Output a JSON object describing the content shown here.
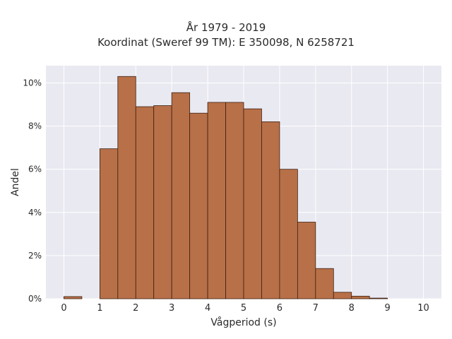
{
  "chart_data": {
    "type": "bar",
    "title_lines": [
      "År 1979 - 2019",
      "Koordinat (Sweref 99 TM): E 350098, N 6258721"
    ],
    "xlabel": "Vågperiod (s)",
    "ylabel": "Andel",
    "xlim": [
      -0.5,
      10.5
    ],
    "ylim": [
      0,
      10.8
    ],
    "x_ticks": [
      0,
      1,
      2,
      3,
      4,
      5,
      6,
      7,
      8,
      9,
      10
    ],
    "y_ticks": [
      0,
      2,
      4,
      6,
      8,
      10
    ],
    "y_tick_labels": [
      "0%",
      "2%",
      "4%",
      "6%",
      "8%",
      "10%"
    ],
    "bin_width": 0.5,
    "bins": [
      {
        "start": 0.0,
        "value": 0.1
      },
      {
        "start": 0.5,
        "value": 0.0
      },
      {
        "start": 1.0,
        "value": 6.95
      },
      {
        "start": 1.5,
        "value": 10.3
      },
      {
        "start": 2.0,
        "value": 8.9
      },
      {
        "start": 2.5,
        "value": 8.95
      },
      {
        "start": 3.0,
        "value": 9.55
      },
      {
        "start": 3.5,
        "value": 8.6
      },
      {
        "start": 4.0,
        "value": 9.1
      },
      {
        "start": 4.5,
        "value": 9.1
      },
      {
        "start": 5.0,
        "value": 8.8
      },
      {
        "start": 5.5,
        "value": 8.2
      },
      {
        "start": 6.0,
        "value": 6.0
      },
      {
        "start": 6.5,
        "value": 3.55
      },
      {
        "start": 7.0,
        "value": 1.4
      },
      {
        "start": 7.5,
        "value": 0.3
      },
      {
        "start": 8.0,
        "value": 0.12
      },
      {
        "start": 8.5,
        "value": 0.03
      }
    ],
    "bar_color": "#b87048",
    "bar_edge_color": "#3d2010",
    "plot_background": "#e9e9f2",
    "grid": true,
    "grid_color": "#ffffff"
  }
}
